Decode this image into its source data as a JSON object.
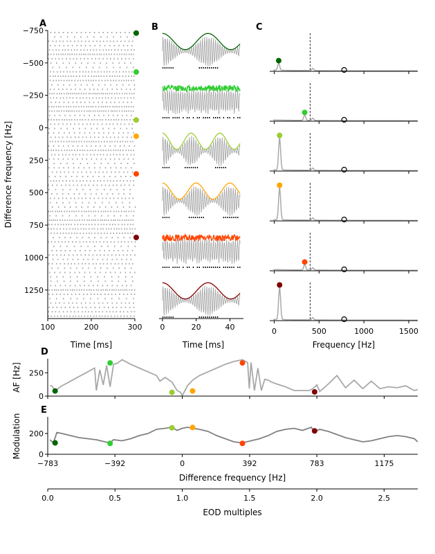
{
  "panel_labels": [
    "A",
    "B",
    "C",
    "D",
    "E"
  ],
  "colors": {
    "df_markers": [
      "#006400",
      "#32cd32",
      "#9acd32",
      "#ffa500",
      "#ff4500",
      "#800000"
    ],
    "gray": "#a8a8a8",
    "dark_gray": "#808080"
  },
  "chart_data": [
    {
      "id": "A",
      "type": "scatter",
      "title": "",
      "xlabel": "Time [ms]",
      "ylabel": "Difference frequency [Hz]",
      "xlim": [
        100,
        300
      ],
      "ylim": [
        1470,
        -750
      ],
      "xticks": [
        100,
        200,
        300
      ],
      "yticks": [
        -750,
        -500,
        -250,
        0,
        250,
        500,
        750,
        1000,
        1250
      ],
      "ytick_labels": [
        "−750",
        "−500",
        "−250",
        "0",
        "250",
        "500",
        "750",
        "1000",
        "1250"
      ],
      "description_of_marks": "spike raster rows, one per difference frequency",
      "highlight_df": [
        -730,
        -430,
        -60,
        65,
        355,
        845
      ],
      "highlight_colors": [
        "#006400",
        "#32cd32",
        "#9acd32",
        "#ffa500",
        "#ff4500",
        "#800000"
      ]
    },
    {
      "id": "B",
      "type": "line",
      "title": "",
      "xlabel": "Time [ms]",
      "ylabel": "",
      "xlim": [
        -2,
        48
      ],
      "xticks": [
        0,
        20,
        40
      ],
      "n_subplots": 6,
      "series_colors": [
        "#006400",
        "#32cd32",
        "#9acd32",
        "#ffa500",
        "#ff4500",
        "#800000"
      ]
    },
    {
      "id": "C",
      "type": "line",
      "title": "",
      "xlabel": "Frequency [Hz]",
      "ylabel": "",
      "xlim": [
        -50,
        1600
      ],
      "xticks": [
        0,
        500,
        1000,
        1500
      ],
      "vline": 400,
      "n_subplots": 6,
      "peak_markers": [
        {
          "x": 50,
          "color": "#006400"
        },
        {
          "x": 340,
          "color": "#32cd32"
        },
        {
          "x": 60,
          "color": "#9acd32"
        },
        {
          "x": 60,
          "color": "#ffa500"
        },
        {
          "x": 340,
          "color": "#ff4500"
        },
        {
          "x": 60,
          "color": "#800000"
        }
      ],
      "eod_marker_x": 780
    },
    {
      "id": "D",
      "type": "line",
      "title": "",
      "xlabel": "",
      "ylabel": "AF [Hz]",
      "xlim": [
        -783,
        1370
      ],
      "ylim": [
        0,
        400
      ],
      "yticks": [
        0,
        250
      ],
      "x": [
        -770,
        -760,
        -740,
        -700,
        -650,
        -600,
        -560,
        -530,
        -510,
        -500,
        -480,
        -460,
        -440,
        -420,
        -400,
        -380,
        -350,
        -300,
        -250,
        -200,
        -150,
        -130,
        -100,
        -60,
        -30,
        -10,
        0,
        30,
        60,
        100,
        150,
        200,
        250,
        300,
        350,
        380,
        390,
        400,
        420,
        440,
        460,
        480,
        500,
        520,
        550,
        600,
        650,
        700,
        740,
        760,
        783,
        800,
        850,
        900,
        950,
        1000,
        1050,
        1100,
        1150,
        1200,
        1250,
        1300,
        1350,
        1370
      ],
      "values": [
        110,
        110,
        60,
        110,
        160,
        210,
        250,
        280,
        300,
        60,
        280,
        120,
        330,
        100,
        340,
        350,
        390,
        340,
        300,
        260,
        220,
        160,
        200,
        150,
        60,
        40,
        5,
        110,
        170,
        220,
        260,
        300,
        340,
        370,
        390,
        360,
        80,
        360,
        60,
        300,
        60,
        180,
        170,
        150,
        130,
        100,
        60,
        60,
        60,
        80,
        120,
        50,
        130,
        220,
        90,
        170,
        80,
        160,
        80,
        100,
        90,
        110,
        60,
        70
      ],
      "markers": [
        {
          "x": -740,
          "y": 55,
          "color": "#006400"
        },
        {
          "x": -420,
          "y": 355,
          "color": "#32cd32"
        },
        {
          "x": -60,
          "y": 40,
          "color": "#9acd32"
        },
        {
          "x": 60,
          "y": 55,
          "color": "#ffa500"
        },
        {
          "x": 350,
          "y": 355,
          "color": "#ff4500"
        },
        {
          "x": 770,
          "y": 45,
          "color": "#800000"
        }
      ]
    },
    {
      "id": "E",
      "type": "line",
      "title": "",
      "xlabel": "Difference frequency [Hz]",
      "ylabel": "Modulation",
      "xlim": [
        -783,
        1370
      ],
      "ylim": [
        0,
        360
      ],
      "xticks": [
        -783,
        -392,
        0,
        392,
        783,
        1175
      ],
      "xtick_labels": [
        "−783",
        "−392",
        "0",
        "392",
        "783",
        "1175"
      ],
      "yticks": [
        0,
        200
      ],
      "x": [
        -770,
        -750,
        -730,
        -700,
        -650,
        -600,
        -550,
        -500,
        -450,
        -420,
        -400,
        -350,
        -300,
        -250,
        -200,
        -150,
        -100,
        -60,
        -30,
        0,
        30,
        60,
        100,
        150,
        200,
        250,
        300,
        350,
        400,
        450,
        500,
        550,
        600,
        650,
        700,
        750,
        770,
        800,
        850,
        900,
        950,
        1000,
        1050,
        1100,
        1150,
        1200,
        1250,
        1300,
        1350,
        1370
      ],
      "values": [
        140,
        110,
        210,
        200,
        180,
        160,
        150,
        140,
        120,
        110,
        140,
        130,
        150,
        180,
        200,
        240,
        250,
        260,
        230,
        250,
        260,
        250,
        240,
        220,
        180,
        150,
        120,
        110,
        130,
        150,
        180,
        220,
        240,
        250,
        230,
        260,
        220,
        240,
        220,
        190,
        160,
        140,
        120,
        130,
        150,
        170,
        180,
        170,
        150,
        120
      ],
      "markers": [
        {
          "x": -740,
          "y": 110,
          "color": "#006400"
        },
        {
          "x": -420,
          "y": 105,
          "color": "#32cd32"
        },
        {
          "x": -60,
          "y": 255,
          "color": "#9acd32"
        },
        {
          "x": 60,
          "y": 258,
          "color": "#ffa500"
        },
        {
          "x": 350,
          "y": 105,
          "color": "#ff4500"
        },
        {
          "x": 770,
          "y": 225,
          "color": "#800000"
        }
      ]
    },
    {
      "id": "EOD",
      "type": "axis",
      "xlabel": "EOD multiples",
      "xlim": [
        0,
        2.75
      ],
      "xticks": [
        0.0,
        0.5,
        1.0,
        1.5,
        2.0,
        2.5
      ],
      "xtick_labels": [
        "0.0",
        "0.5",
        "1.0",
        "1.5",
        "2.0",
        "2.5"
      ]
    }
  ]
}
